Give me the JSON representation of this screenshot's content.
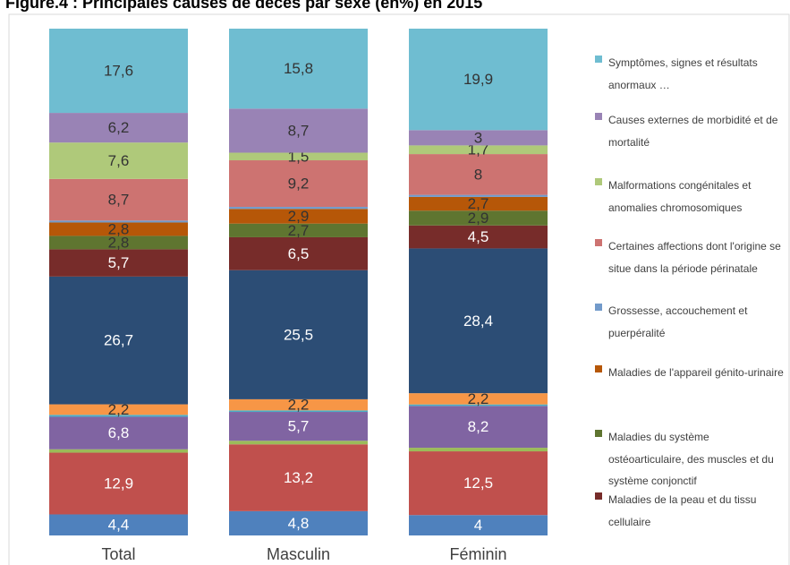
{
  "chart_data": {
    "type": "bar",
    "stacked": true,
    "normalize": true,
    "title": "Figure.4 : Principales causes de décès par sexe (en%) en 2015",
    "categories": [
      "Total",
      "Masculin",
      "Féminin"
    ],
    "series": [
      {
        "name": null,
        "color": "#4f81bd",
        "label_color": "#ffffff",
        "values": [
          4.4,
          4.8,
          4
        ],
        "value_labels": [
          "4,4",
          "4,8",
          "4"
        ]
      },
      {
        "name": null,
        "color": "#c0504d",
        "label_color": "#ffffff",
        "values": [
          12.9,
          13.2,
          12.5
        ],
        "value_labels": [
          "12,9",
          "13,2",
          "12,5"
        ]
      },
      {
        "name": null,
        "color": "#9bbb59",
        "label_color": "#333333",
        "values": [
          0.7,
          0.7,
          0.7
        ],
        "value_labels": [
          null,
          null,
          null
        ]
      },
      {
        "name": null,
        "color": "#8064a2",
        "label_color": "#ffffff",
        "values": [
          6.8,
          5.7,
          8.2
        ],
        "value_labels": [
          "6,8",
          "5,7",
          "8,2"
        ]
      },
      {
        "name": null,
        "color": "#4bacc6",
        "label_color": "#333333",
        "values": [
          0.4,
          0.3,
          0.3
        ],
        "value_labels": [
          null,
          null,
          null
        ]
      },
      {
        "name": null,
        "color": "#f79646",
        "label_color": "#333333",
        "values": [
          2.2,
          2.2,
          2.2
        ],
        "value_labels": [
          "2,2",
          "2,2",
          "2,2"
        ]
      },
      {
        "name": null,
        "color": "#2c4d75",
        "label_color": "#ffffff",
        "values": [
          26.7,
          25.5,
          28.4
        ],
        "value_labels": [
          "26,7",
          "25,5",
          "28,4"
        ]
      },
      {
        "name": "Maladies de la peau et du tissu cellulaire",
        "color": "#772c2a",
        "label_color": "#ffffff",
        "values": [
          5.7,
          6.5,
          4.5
        ],
        "value_labels": [
          "5,7",
          "6,5",
          "4,5"
        ]
      },
      {
        "name": "Maladies du système ostéoarticulaire, des muscles et du système conjonctif",
        "color": "#5f7530",
        "label_color": "#333333",
        "values": [
          2.8,
          2.7,
          2.9
        ],
        "value_labels": [
          "2,8",
          "2,7",
          "2,9"
        ]
      },
      {
        "name": "Maladies de l'appareil génito-urinaire",
        "color": "#b65708",
        "label_color": "#333333",
        "values": [
          2.8,
          2.9,
          2.7
        ],
        "value_labels": [
          "2,8",
          "2,9",
          "2,7"
        ]
      },
      {
        "name": "Grossesse, accouchement et puerpéralité",
        "color": "#729aca",
        "label_color": "#333333",
        "values": [
          0.4,
          0.4,
          0.4
        ],
        "value_labels": [
          null,
          null,
          null
        ]
      },
      {
        "name": "Certaines affections dont l'origine se situe dans la période périnatale",
        "color": "#cd7371",
        "label_color": "#333333",
        "values": [
          8.7,
          9.2,
          8
        ],
        "value_labels": [
          "8,7",
          "9,2",
          "8"
        ]
      },
      {
        "name": "Malformations congénitales et anomalies chromosomiques",
        "color": "#afc97a",
        "label_color": "#333333",
        "values": [
          7.6,
          1.5,
          1.7
        ],
        "value_labels": [
          "7,6",
          "1,5",
          "1,7"
        ]
      },
      {
        "name": "Causes externes de morbidité et de mortalité",
        "color": "#9983b5",
        "label_color": "#333333",
        "values": [
          6.2,
          8.7,
          3
        ],
        "value_labels": [
          "6,2",
          "8,7",
          "3"
        ]
      },
      {
        "name": "Symptômes, signes et résultats anormaux …",
        "color": "#6fbdd1",
        "label_color": "#333333",
        "values": [
          17.6,
          15.8,
          19.9
        ],
        "value_labels": [
          "17,6",
          "15,8",
          "19,9"
        ]
      }
    ]
  }
}
